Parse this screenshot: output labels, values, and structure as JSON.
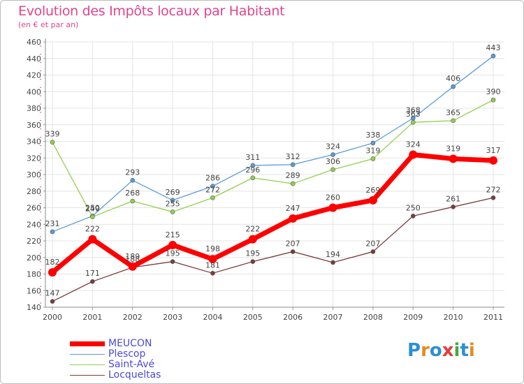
{
  "title": "Evolution des Impôts locaux par Habitant",
  "subtitle": "(en € et par an)",
  "logo": {
    "text": "Proxiti",
    "letters": [
      "P",
      "r",
      "o",
      "x",
      "i",
      "t",
      "i"
    ],
    "colors": [
      "#2b8fd6",
      "#e98a1a",
      "#2b8fd6",
      "#e03c3c",
      "#4aa83a",
      "#2b8fd6",
      "#e98a1a"
    ]
  },
  "chart_data": {
    "type": "line",
    "title": "Evolution des Impôts locaux par Habitant",
    "subtitle": "(en € et par an)",
    "xlabel": "",
    "ylabel": "",
    "ylim": [
      140,
      460
    ],
    "ytick_step": 20,
    "x": [
      "2000",
      "2001",
      "2002",
      "2003",
      "2004",
      "2005",
      "2006",
      "2007",
      "2008",
      "2009",
      "2010",
      "2011"
    ],
    "grid": true,
    "series": [
      {
        "name": "Plescop",
        "color": "#5b9bd5",
        "thick": false,
        "values": [
          231,
          250,
          293,
          269,
          286,
          311,
          312,
          324,
          338,
          368,
          406,
          443
        ]
      },
      {
        "name": "Saint-Avé",
        "color": "#92d050",
        "thick": false,
        "values": [
          339,
          249,
          268,
          255,
          272,
          296,
          289,
          306,
          319,
          363,
          365,
          390
        ]
      },
      {
        "name": "Locqueltas",
        "color": "#7a3b3b",
        "thick": false,
        "values": [
          147,
          171,
          188,
          195,
          181,
          195,
          207,
          194,
          207,
          250,
          261,
          272
        ]
      },
      {
        "name": "MEUCON",
        "color": "#ff0000",
        "thick": true,
        "values": [
          182,
          222,
          189,
          215,
          198,
          222,
          247,
          260,
          269,
          324,
          319,
          317
        ]
      }
    ],
    "legend_order": [
      "MEUCON",
      "Plescop",
      "Saint-Avé",
      "Locqueltas"
    ],
    "legend_position": "bottom-left"
  }
}
